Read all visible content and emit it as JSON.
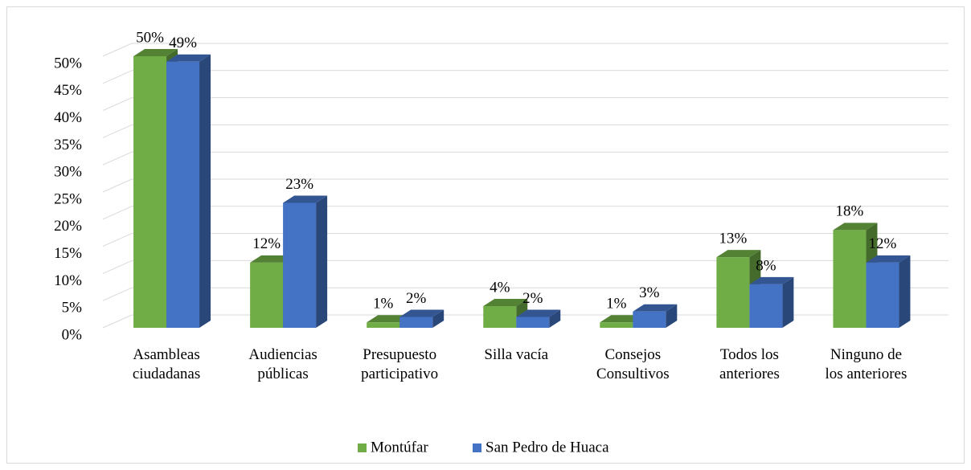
{
  "chart_data": {
    "type": "bar3d",
    "categories": [
      "Asambleas\nciudadanas",
      "Audiencias\npúblicas",
      "Presupuesto\nparticipativo",
      "Silla vacía",
      "Consejos\nConsultivos",
      "Todos los\nanteriores",
      "Ninguno de\nlos anteriores"
    ],
    "series": [
      {
        "name": "Montúfar",
        "color": "#70ad47",
        "values": [
          50,
          12,
          1,
          4,
          1,
          13,
          18
        ],
        "value_labels": [
          "50%",
          "12%",
          "1%",
          "4%",
          "1%",
          "13%",
          "18%"
        ]
      },
      {
        "name": "San Pedro de Huaca",
        "color": "#4472c4",
        "values": [
          49,
          23,
          2,
          2,
          3,
          8,
          12
        ],
        "value_labels": [
          "49%",
          "23%",
          "2%",
          "2%",
          "3%",
          "8%",
          "12%"
        ]
      }
    ],
    "ylim": [
      0,
      50
    ],
    "yticks": [
      {
        "value": 0,
        "label": "0%"
      },
      {
        "value": 5,
        "label": "5%"
      },
      {
        "value": 10,
        "label": "10%"
      },
      {
        "value": 15,
        "label": "15%"
      },
      {
        "value": 20,
        "label": "20%"
      },
      {
        "value": 25,
        "label": "25%"
      },
      {
        "value": 30,
        "label": "30%"
      },
      {
        "value": 35,
        "label": "35%"
      },
      {
        "value": 40,
        "label": "40%"
      },
      {
        "value": 45,
        "label": "45%"
      },
      {
        "value": 50,
        "label": "50%"
      }
    ],
    "grid": true,
    "legend": "bottom"
  }
}
